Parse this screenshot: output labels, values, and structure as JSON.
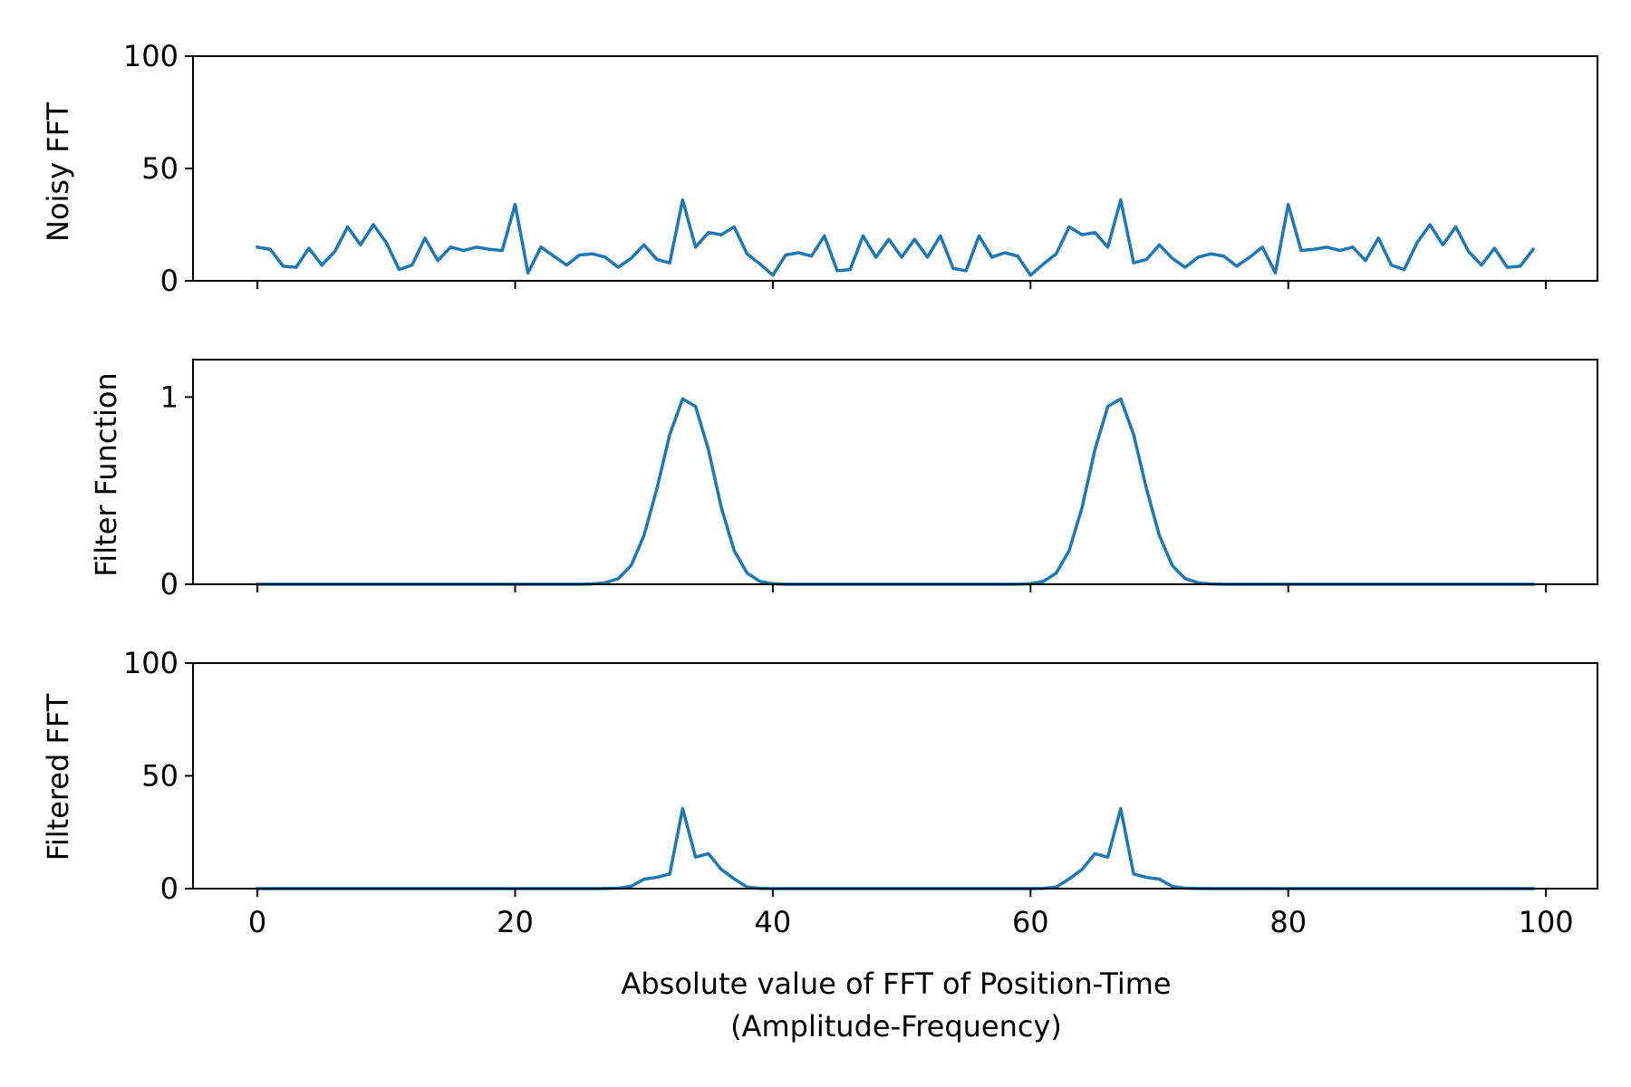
{
  "chart_data": [
    {
      "type": "line",
      "ylabel": "Noisy FFT",
      "xlim": [
        -5,
        104
      ],
      "ylim": [
        0,
        100
      ],
      "yticks": [
        0,
        50,
        100
      ],
      "ytick_labels": [
        "0",
        "50",
        "100"
      ],
      "xticks": [
        0,
        20,
        40,
        60,
        80,
        100
      ],
      "show_xtick_labels": false,
      "line_color": "#1f77b4",
      "grid": false,
      "x": [
        0,
        1,
        2,
        3,
        4,
        5,
        6,
        7,
        8,
        9,
        10,
        11,
        12,
        13,
        14,
        15,
        16,
        17,
        18,
        19,
        20,
        21,
        22,
        23,
        24,
        25,
        26,
        27,
        28,
        29,
        30,
        31,
        32,
        33,
        34,
        35,
        36,
        37,
        38,
        39,
        40,
        41,
        42,
        43,
        44,
        45,
        46,
        47,
        48,
        49,
        50,
        51,
        52,
        53,
        54,
        55,
        56,
        57,
        58,
        59,
        60,
        61,
        62,
        63,
        64,
        65,
        66,
        67,
        68,
        69,
        70,
        71,
        72,
        73,
        74,
        75,
        76,
        77,
        78,
        79,
        80,
        81,
        82,
        83,
        84,
        85,
        86,
        87,
        88,
        89,
        90,
        91,
        92,
        93,
        94,
        95,
        96,
        97,
        98,
        99
      ],
      "y": [
        15,
        14,
        6.5,
        6,
        14.5,
        7,
        13,
        24,
        16,
        25,
        17,
        5,
        7,
        19,
        9,
        15,
        13.5,
        15,
        14,
        13.5,
        34,
        3.5,
        15,
        11,
        7,
        11.5,
        12,
        10.5,
        6,
        10,
        16,
        9.5,
        8,
        36,
        15,
        21.5,
        20.5,
        24,
        12,
        7.5,
        2.5,
        11.5,
        12.5,
        11,
        20,
        4.5,
        5,
        20,
        10.5,
        18.5,
        10.5,
        18.5,
        10.5,
        20,
        5.5,
        4.5,
        20,
        10.5,
        12.5,
        11,
        2.5,
        7.5,
        12,
        24,
        20.5,
        21.5,
        15,
        36,
        8,
        9.5,
        16,
        10,
        6,
        10.5,
        12,
        11,
        6.5,
        10.5,
        15,
        3.5,
        34,
        13.5,
        14,
        15,
        13.5,
        15,
        9,
        19,
        7,
        5,
        17,
        25,
        16,
        24,
        13,
        7,
        14.5,
        6,
        6.5,
        14
      ]
    },
    {
      "type": "line",
      "ylabel": "Filter Function",
      "xlim": [
        -5,
        104
      ],
      "ylim": [
        0,
        1.2
      ],
      "yticks": [
        0,
        1
      ],
      "ytick_labels": [
        "0",
        "1"
      ],
      "xticks": [
        0,
        20,
        40,
        60,
        80,
        100
      ],
      "show_xtick_labels": false,
      "line_color": "#1f77b4",
      "grid": false,
      "x": [
        0,
        1,
        2,
        3,
        4,
        5,
        6,
        7,
        8,
        9,
        10,
        11,
        12,
        13,
        14,
        15,
        16,
        17,
        18,
        19,
        20,
        21,
        22,
        23,
        24,
        25,
        26,
        27,
        28,
        29,
        30,
        31,
        32,
        33,
        34,
        35,
        36,
        37,
        38,
        39,
        40,
        41,
        42,
        43,
        44,
        45,
        46,
        47,
        48,
        49,
        50,
        51,
        52,
        53,
        54,
        55,
        56,
        57,
        58,
        59,
        60,
        61,
        62,
        63,
        64,
        65,
        66,
        67,
        68,
        69,
        70,
        71,
        72,
        73,
        74,
        75,
        76,
        77,
        78,
        79,
        80,
        81,
        82,
        83,
        84,
        85,
        86,
        87,
        88,
        89,
        90,
        91,
        92,
        93,
        94,
        95,
        96,
        97,
        98,
        99
      ],
      "y": [
        0,
        0,
        0,
        0,
        0,
        0,
        0,
        0,
        0,
        0,
        0,
        0,
        0,
        0,
        0,
        0,
        0,
        0,
        0,
        0,
        0,
        0,
        0,
        0,
        0,
        0,
        0.002,
        0.008,
        0.03,
        0.1,
        0.26,
        0.51,
        0.8,
        0.99,
        0.95,
        0.72,
        0.41,
        0.18,
        0.06,
        0.015,
        0.003,
        0,
        0,
        0,
        0,
        0,
        0,
        0,
        0,
        0,
        0,
        0,
        0,
        0,
        0,
        0,
        0,
        0,
        0,
        0,
        0.003,
        0.015,
        0.06,
        0.18,
        0.41,
        0.72,
        0.95,
        0.99,
        0.8,
        0.51,
        0.26,
        0.1,
        0.03,
        0.008,
        0.002,
        0,
        0,
        0,
        0,
        0,
        0,
        0,
        0,
        0,
        0,
        0,
        0,
        0,
        0,
        0,
        0,
        0,
        0,
        0,
        0,
        0,
        0,
        0,
        0,
        0
      ]
    },
    {
      "type": "line",
      "ylabel": "Filtered FFT",
      "xlabel": [
        "Absolute value of FFT of Position-Time",
        "(Amplitude-Frequency)"
      ],
      "xlim": [
        -5,
        104
      ],
      "ylim": [
        0,
        100
      ],
      "yticks": [
        0,
        50,
        100
      ],
      "ytick_labels": [
        "0",
        "50",
        "100"
      ],
      "xticks": [
        0,
        20,
        40,
        60,
        80,
        100
      ],
      "xtick_labels": [
        "0",
        "20",
        "40",
        "60",
        "80",
        "100"
      ],
      "show_xtick_labels": true,
      "line_color": "#1f77b4",
      "grid": false,
      "x": [
        0,
        1,
        2,
        3,
        4,
        5,
        6,
        7,
        8,
        9,
        10,
        11,
        12,
        13,
        14,
        15,
        16,
        17,
        18,
        19,
        20,
        21,
        22,
        23,
        24,
        25,
        26,
        27,
        28,
        29,
        30,
        31,
        32,
        33,
        34,
        35,
        36,
        37,
        38,
        39,
        40,
        41,
        42,
        43,
        44,
        45,
        46,
        47,
        48,
        49,
        50,
        51,
        52,
        53,
        54,
        55,
        56,
        57,
        58,
        59,
        60,
        61,
        62,
        63,
        64,
        65,
        66,
        67,
        68,
        69,
        70,
        71,
        72,
        73,
        74,
        75,
        76,
        77,
        78,
        79,
        80,
        81,
        82,
        83,
        84,
        85,
        86,
        87,
        88,
        89,
        90,
        91,
        92,
        93,
        94,
        95,
        96,
        97,
        98,
        99
      ],
      "y": [
        0,
        0,
        0,
        0,
        0,
        0,
        0,
        0,
        0,
        0,
        0,
        0,
        0,
        0,
        0,
        0,
        0,
        0,
        0,
        0,
        0,
        0,
        0,
        0,
        0,
        0,
        0,
        0.05,
        0.2,
        1,
        4.2,
        5,
        6.5,
        35.5,
        14,
        15.5,
        8.5,
        4.3,
        0.7,
        0.1,
        0,
        0,
        0,
        0,
        0,
        0,
        0,
        0,
        0,
        0,
        0,
        0,
        0,
        0,
        0,
        0,
        0,
        0,
        0,
        0,
        0,
        0.1,
        0.7,
        4.3,
        8.5,
        15.5,
        14,
        35.5,
        6.5,
        5,
        4.2,
        1,
        0.2,
        0.05,
        0,
        0,
        0,
        0,
        0,
        0,
        0,
        0,
        0,
        0,
        0,
        0,
        0,
        0,
        0,
        0,
        0,
        0,
        0,
        0,
        0,
        0,
        0,
        0,
        0,
        0
      ]
    }
  ]
}
